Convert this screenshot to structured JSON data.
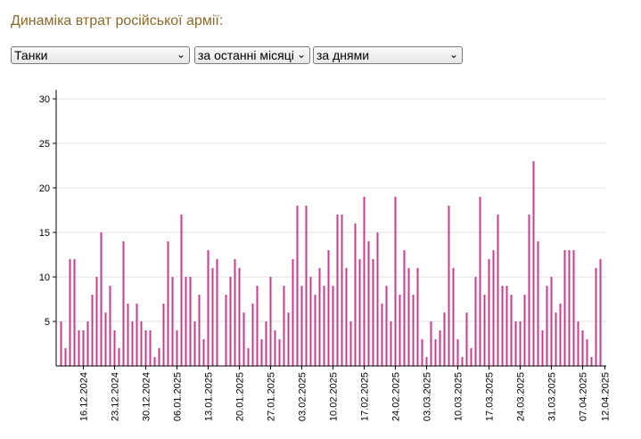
{
  "title": "Динаміка втрат російської армії:",
  "controls": {
    "category": "Танки",
    "period": "за останні місяці",
    "grouping": "за днями"
  },
  "icons": {
    "dropdown": "chevron-down-icon"
  },
  "colors": {
    "bar": "#c83c8c",
    "title": "#8a6a2a",
    "grid": "#e2e2e2"
  },
  "chart_data": {
    "type": "bar",
    "title": "",
    "xlabel": "",
    "ylabel": "",
    "ylim": [
      0,
      31
    ],
    "yticks": [
      5,
      10,
      15,
      20,
      25,
      30
    ],
    "grid": true,
    "x_tick_labels": [
      "16.12.2024",
      "23.12.2024",
      "30.12.2024",
      "06.01.2025",
      "13.01.2025",
      "20.01.2025",
      "27.01.2025",
      "03.02.2025",
      "10.02.2025",
      "17.02.2025",
      "24.02.2025",
      "03.03.2025",
      "10.03.2025",
      "17.03.2025",
      "24.03.2025",
      "31.03.2025",
      "07.04.2025",
      "12.04.2025"
    ],
    "x_tick_index": [
      5,
      12,
      19,
      26,
      33,
      40,
      47,
      54,
      61,
      68,
      75,
      82,
      89,
      96,
      103,
      110,
      117,
      122
    ],
    "start_date": "11.12.2024",
    "values": [
      5,
      2,
      12,
      12,
      4,
      4,
      5,
      8,
      10,
      15,
      6,
      9,
      4,
      2,
      14,
      7,
      5,
      7,
      5,
      4,
      4,
      1,
      2,
      7,
      14,
      10,
      4,
      17,
      10,
      10,
      5,
      8,
      3,
      13,
      11,
      12,
      0,
      8,
      10,
      12,
      11,
      6,
      2,
      7,
      9,
      3,
      5,
      10,
      4,
      3,
      9,
      6,
      12,
      18,
      9,
      18,
      10,
      8,
      11,
      9,
      13,
      9,
      17,
      17,
      11,
      5,
      16,
      12,
      19,
      14,
      12,
      15,
      7,
      9,
      5,
      19,
      8,
      13,
      11,
      8,
      11,
      3,
      1,
      5,
      3,
      4,
      6,
      18,
      11,
      3,
      1,
      6,
      2,
      10,
      19,
      8,
      12,
      13,
      17,
      9,
      9,
      8,
      5,
      5,
      8,
      17,
      23,
      14,
      4,
      9,
      10,
      6,
      7,
      13,
      13,
      13,
      5,
      4,
      3,
      1,
      11,
      12
    ]
  }
}
